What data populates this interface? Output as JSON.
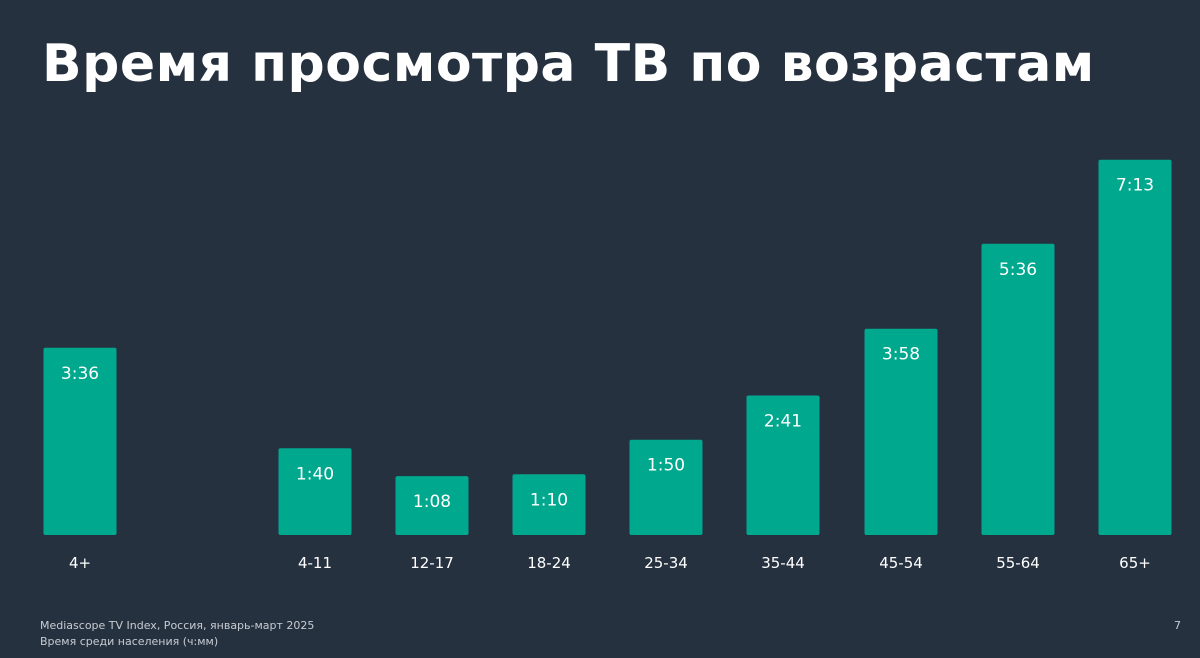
{
  "slide": {
    "title": "Время просмотра ТВ по возрастам",
    "page_number": "7",
    "source": "Mediascope TV Index, Россия, январь-март 2025",
    "note": "Время среди населения (ч:мм)"
  },
  "colors": {
    "background": "#263140",
    "bar": "#00a88e",
    "text": "#ffffff",
    "footer_text": "#c7ccd3"
  },
  "chart_data": {
    "type": "bar",
    "title": "Время просмотра ТВ по возрастам",
    "xlabel": "",
    "ylabel": "",
    "ylim": [
      0,
      435
    ],
    "grid": false,
    "legend": "none",
    "categories": [
      "4+",
      "4-11",
      "12-17",
      "18-24",
      "25-34",
      "35-44",
      "45-54",
      "55-64",
      "65+"
    ],
    "series": [
      {
        "values": [
          216,
          100,
          68,
          70,
          110,
          161,
          238,
          336,
          433
        ],
        "data_labels": [
          "3:36",
          "1:40",
          "1:08",
          "1:10",
          "1:50",
          "2:41",
          "3:58",
          "5:36",
          "7:13"
        ]
      }
    ]
  }
}
